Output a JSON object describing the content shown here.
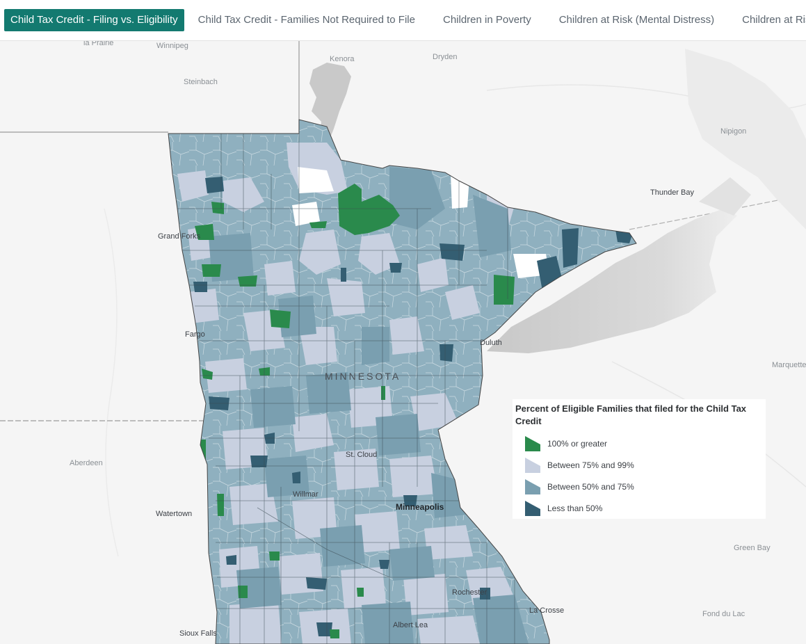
{
  "tabs": [
    {
      "label": "Child Tax Credit - Filing vs. Eligibility",
      "active": true
    },
    {
      "label": "Child Tax Credit - Families Not Required to File",
      "active": false
    },
    {
      "label": "Children in Poverty",
      "active": false
    },
    {
      "label": "Children at Risk (Mental Distress)",
      "active": false
    },
    {
      "label": "Children at Risk",
      "active": false
    }
  ],
  "map": {
    "state_label": "MINNESOTA",
    "places": {
      "la_prairie": "la Prairie",
      "winnipeg": "Winnipeg",
      "steinbach": "Steinbach",
      "kenora": "Kenora",
      "dryden": "Dryden",
      "nipigon": "Nipigon",
      "thunder_bay": "Thunder Bay",
      "aberdeen": "Aberdeen",
      "watertown": "Watertown",
      "sioux_falls": "Sioux Falls",
      "marquette": "Marquette",
      "green_bay": "Green Bay",
      "fond_du_lac": "Fond du Lac"
    },
    "cities": {
      "grand_forks": "Grand Forks",
      "fargo": "Fargo",
      "duluth": "Duluth",
      "st_cloud": "St. Cloud",
      "willmar": "Willmar",
      "minneapolis": "Minneapolis",
      "rochester": "Rochester",
      "la_crosse": "La Crosse",
      "albert_lea": "Albert Lea"
    }
  },
  "legend": {
    "title": "Percent of Eligible Families that filed for the Child Tax Credit",
    "items": [
      {
        "label": "100% or greater",
        "color": "#2a8a4c"
      },
      {
        "label": "Between 75% and 99%",
        "color": "#c8d0e0"
      },
      {
        "label": "Between 50% and 75%",
        "color": "#7a9fb0"
      },
      {
        "label": "Less than 50%",
        "color": "#345e72"
      }
    ]
  },
  "colors": {
    "tab_active_bg": "#137a70",
    "lake_superior": "#d2d2d2",
    "basemap": "#f5f5f5"
  }
}
